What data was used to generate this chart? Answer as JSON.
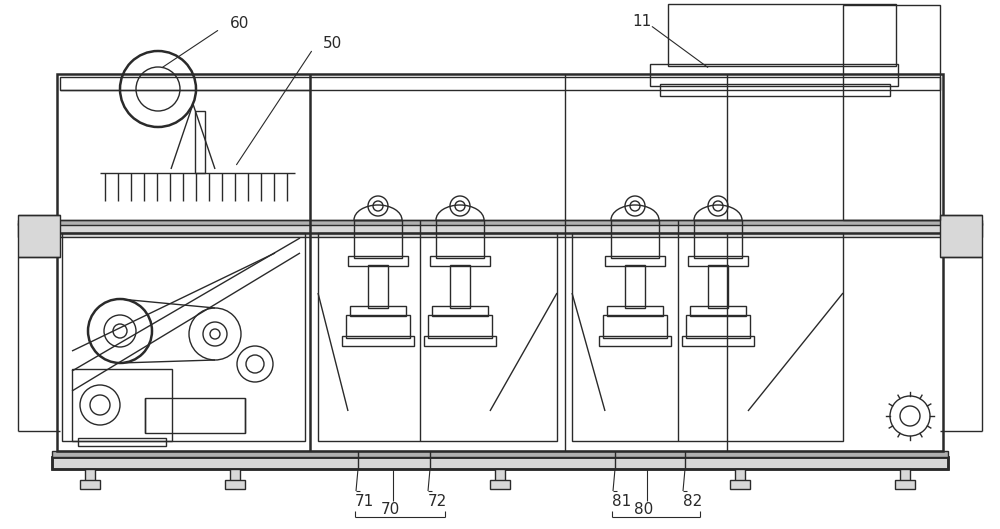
{
  "fig_width": 10.0,
  "fig_height": 5.29,
  "dpi": 100,
  "bg_color": "#ffffff",
  "lc": "#2a2a2a",
  "lw": 1.0,
  "lw2": 1.8,
  "gray1": "#b0b0b0",
  "gray2": "#d8d8d8",
  "gray3": "#e8e8e8"
}
